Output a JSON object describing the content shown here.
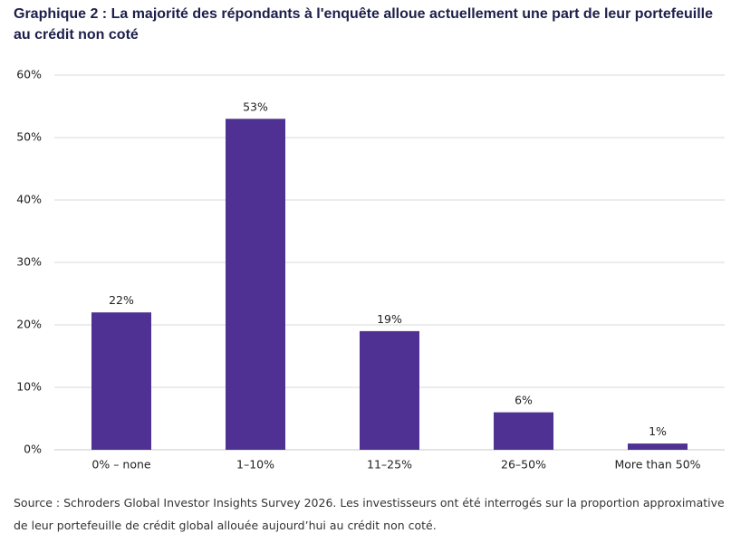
{
  "colors": {
    "bar": "#4e3192",
    "title": "#1c1f4a",
    "grid": "#d9d9d9",
    "baseline": "#c8c8c8",
    "text": "#222222"
  },
  "chart_data": {
    "type": "bar",
    "title": "Graphique 2 : La majorité des répondants à l'enquête alloue actuellement une part de leur portefeuille au crédit non coté",
    "note": "Source : Schroders Global Investor Insights Survey 2026. Les investisseurs ont été interrogés sur la proportion approximative de leur portefeuille de crédit global allouée aujourd’hui au crédit non coté.",
    "xlabel": "",
    "ylabel": "",
    "categories": [
      "0% – none",
      "1–10%",
      "11–25%",
      "26–50%",
      "More than 50%"
    ],
    "values": [
      22,
      53,
      19,
      6,
      1
    ],
    "data_labels": [
      "22%",
      "53%",
      "19%",
      "6%",
      "1%"
    ],
    "ylim": [
      0,
      60
    ],
    "y_tick_values": [
      0,
      10,
      20,
      30,
      40,
      50,
      60
    ],
    "y_tick_labels": [
      "0%",
      "10%",
      "20%",
      "30%",
      "40%",
      "50%",
      "60%"
    ],
    "grid": true,
    "legend": "none"
  }
}
